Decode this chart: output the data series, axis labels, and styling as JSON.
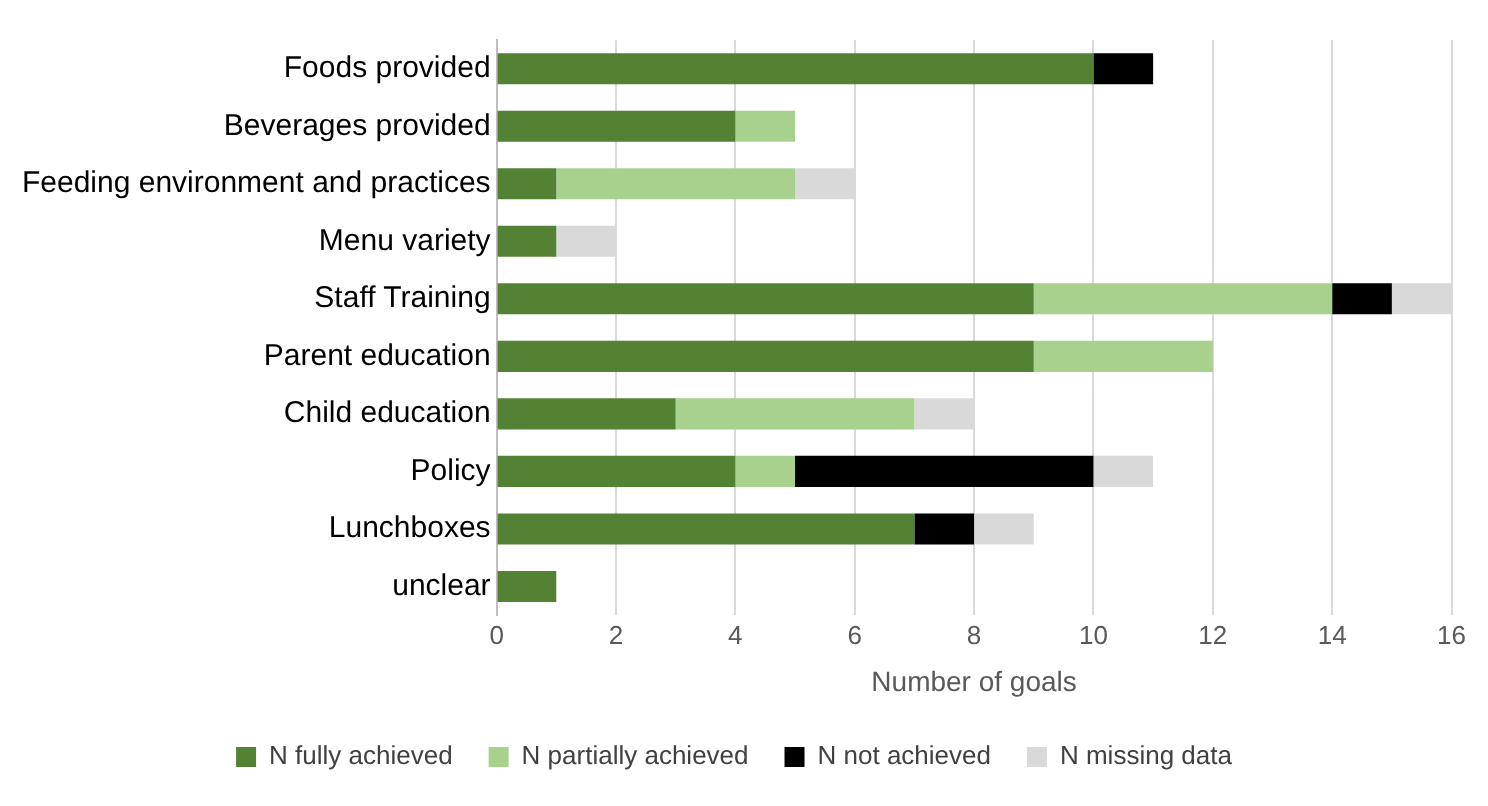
{
  "chart_data": {
    "type": "bar",
    "orientation": "horizontal",
    "stacked": true,
    "xlabel": "Number of goals",
    "categories": [
      "Foods provided",
      "Beverages provided",
      "Feeding environment and practices",
      "Menu variety",
      "Staff Training",
      "Parent education",
      "Child education",
      "Policy",
      "Lunchboxes",
      "unclear"
    ],
    "series": [
      {
        "name": "N fully achieved",
        "color": "#548235",
        "values": [
          10,
          4,
          1,
          1,
          9,
          9,
          3,
          4,
          7,
          1
        ]
      },
      {
        "name": "N partially achieved",
        "color": "#a9d18e",
        "values": [
          0,
          1,
          4,
          0,
          5,
          3,
          4,
          1,
          0,
          0
        ]
      },
      {
        "name": "N not achieved",
        "color": "#000000",
        "values": [
          1,
          0,
          0,
          0,
          1,
          0,
          0,
          5,
          1,
          0
        ]
      },
      {
        "name": "N missing data",
        "color": "#d9d9d9",
        "values": [
          0,
          0,
          1,
          1,
          1,
          0,
          1,
          1,
          1,
          0
        ]
      }
    ],
    "xlim": [
      0,
      16
    ],
    "xticks": [
      0,
      2,
      4,
      6,
      8,
      10,
      12,
      14,
      16
    ],
    "grid": "x",
    "legend": "bottom"
  }
}
